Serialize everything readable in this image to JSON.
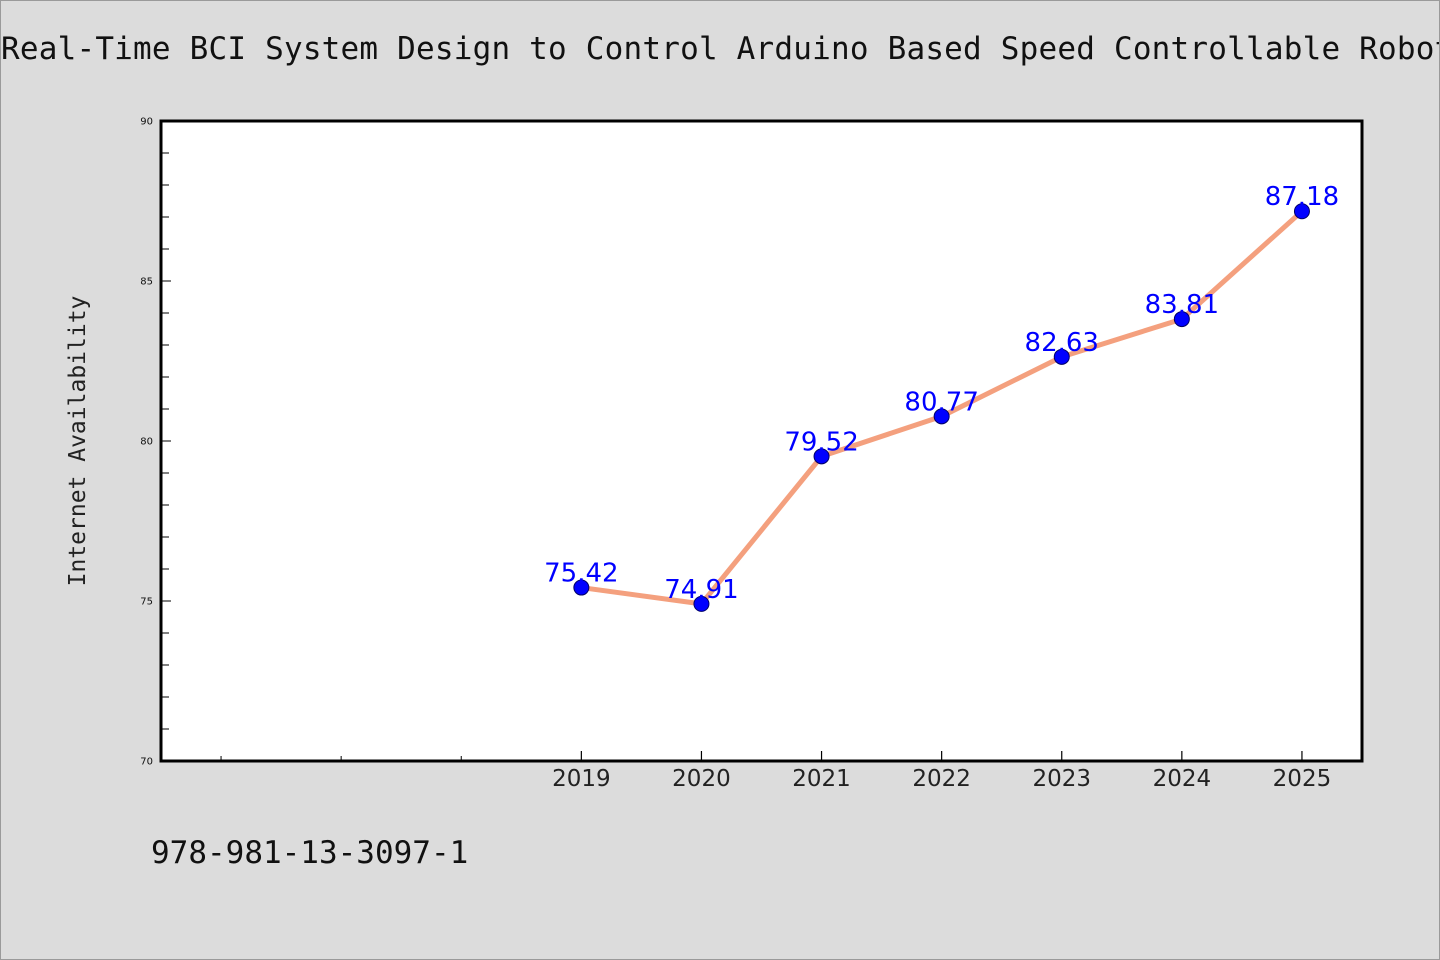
{
  "page": {
    "title": "Real-Time BCI System Design to Control Arduino Based Speed Controllable Robot Us",
    "footer_code": "978-981-13-3097-1"
  },
  "chart_data": {
    "type": "line",
    "title": "Real-Time BCI System Design to Control Arduino Based Speed Controllable Robot Us",
    "xlabel": "",
    "ylabel": "Internet Availability",
    "x_range": [
      2015.5,
      2025.5
    ],
    "categories": [
      "2019",
      "2020",
      "2021",
      "2022",
      "2023",
      "2024",
      "2025"
    ],
    "x": [
      2019,
      2020,
      2021,
      2022,
      2023,
      2024,
      2025
    ],
    "values": [
      75.42,
      74.91,
      79.52,
      80.77,
      82.63,
      83.81,
      87.18
    ],
    "data_labels": [
      "75.42",
      "74.91",
      "79.52",
      "80.77",
      "82.63",
      "83.81",
      "87.18"
    ],
    "ylim": [
      70,
      90
    ],
    "yticks": [
      70,
      75,
      80,
      85,
      90
    ],
    "ytick_labels": [
      "70",
      "75",
      "80",
      "85",
      "90"
    ],
    "y_minor_step": 1,
    "x_minor_ticks": [
      2016,
      2017,
      2018
    ],
    "grid": false,
    "legend": "none",
    "colors": {
      "line": "#f4a07e",
      "marker": "#0000ff",
      "marker_edge": "#000066",
      "data_label": "#0000ff",
      "plot_background": "#ffffff",
      "figure_background": "#dcdcdc"
    }
  }
}
